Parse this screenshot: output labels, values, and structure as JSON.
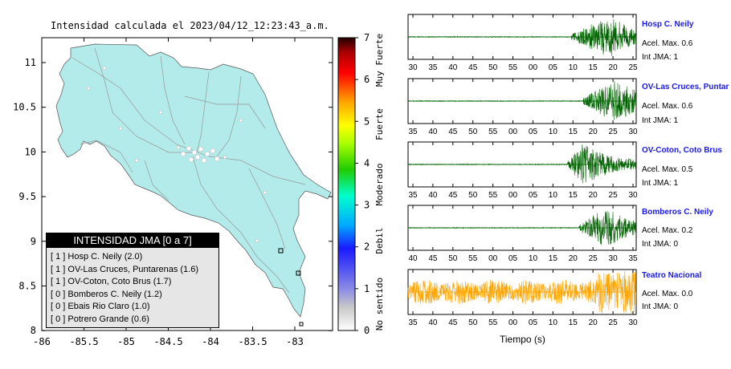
{
  "map": {
    "title": "Intensidad calculada el 2023/04/12_12:23:43_a.m.",
    "x_ticks": [
      "-86",
      "-85.5",
      "-85",
      "-84.5",
      "-84",
      "-83.5",
      "-83"
    ],
    "y_ticks": [
      "11",
      "10.5",
      "10",
      "9.5",
      "9",
      "8.5",
      "8"
    ],
    "land_color": "#b2ebea",
    "sea_color": "#ffffff"
  },
  "colorbar": {
    "ticks": [
      "0",
      "1",
      "2",
      "3",
      "4",
      "5",
      "6",
      "7"
    ],
    "labels": [
      "No sentido",
      "Debil",
      "Moderado",
      "Fuerte",
      "Muy Fuerte"
    ]
  },
  "legend": {
    "title": "INTENSIDAD JMA [0 a 7]",
    "items": [
      "[ 1 ]  Hosp C. Neily (2.0)",
      "[ 1 ]  OV-Las Cruces, Puntarenas (1.6)",
      "[ 1 ]  OV-Coton, Coto Brus (1.7)",
      "[ 0 ]  Bomberos C. Neily (1.2)",
      "[ 0 ]  Ebais Rio Claro (1.0)",
      "[ 0 ]  Potrero Grande (0.6)"
    ]
  },
  "xlabel": "Tiempo (s)",
  "chart_data": [
    {
      "type": "line",
      "name": "Hosp C. Neily",
      "acc_label": "Acel. Max. 0.6",
      "jma_label": "Int JMA: 1",
      "color": "#006400",
      "x_ticks": [
        "30",
        "35",
        "40",
        "45",
        "50",
        "55",
        "00",
        "05",
        "10",
        "15",
        "20",
        "25"
      ],
      "onset": 43,
      "peak": 53,
      "decay": 8
    },
    {
      "type": "line",
      "name": "OV-Las Cruces, Puntar",
      "acc_label": "Acel. Max. 0.6",
      "jma_label": "Int JMA: 1",
      "color": "#006400",
      "x_ticks": [
        "35",
        "40",
        "45",
        "50",
        "55",
        "00",
        "05",
        "10",
        "15",
        "20",
        "25",
        "30"
      ],
      "onset": 46,
      "peak": 54,
      "decay": 11
    },
    {
      "type": "line",
      "name": "OV-Coton, Coto Brus",
      "acc_label": "Acel. Max. 0.5",
      "jma_label": "Int JMA: 1",
      "color": "#006400",
      "x_ticks": [
        "35",
        "40",
        "45",
        "50",
        "55",
        "00",
        "05",
        "10",
        "15",
        "20",
        "25",
        "30"
      ],
      "onset": 42,
      "peak": 46,
      "decay": 9
    },
    {
      "type": "line",
      "name": "Bomberos C. Neily",
      "acc_label": "Acel. Max. 0.2",
      "jma_label": "Int JMA: 0",
      "color": "#006400",
      "x_ticks": [
        "40",
        "45",
        "50",
        "55",
        "00",
        "05",
        "10",
        "15",
        "20",
        "25",
        "30",
        "35"
      ],
      "onset": 45,
      "peak": 52,
      "decay": 7
    },
    {
      "type": "line",
      "name": "Teatro Nacional",
      "acc_label": "Acel. Max. 0.0",
      "jma_label": "Int JMA: 0",
      "color": "#ffa500",
      "x_ticks": [
        "35",
        "40",
        "45",
        "50",
        "55",
        "00",
        "05",
        "10",
        "15",
        "20",
        "25",
        "30"
      ],
      "onset": 0,
      "peak": 0,
      "decay": 0
    }
  ]
}
